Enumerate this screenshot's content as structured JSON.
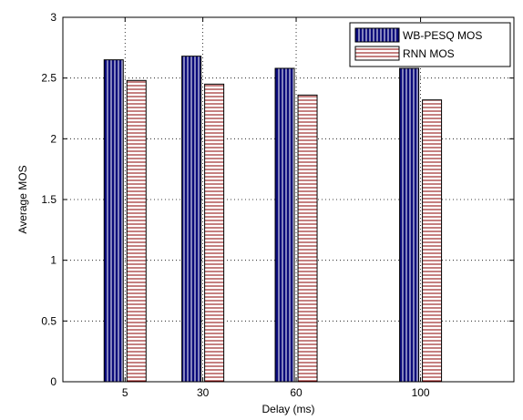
{
  "chart_data": {
    "type": "bar",
    "title": "",
    "xlabel": "Delay (ms)",
    "ylabel": "Average MOS",
    "x": [
      5,
      30,
      60,
      100
    ],
    "x_tick_labels": [
      "5",
      "30",
      "60",
      "100"
    ],
    "xlim": [
      -15,
      130
    ],
    "ylim": [
      0,
      3
    ],
    "y_ticks": [
      0,
      0.5,
      1,
      1.5,
      2,
      2.5,
      3
    ],
    "y_tick_labels": [
      "0",
      "0.5",
      "1",
      "1.5",
      "2",
      "2.5",
      "3"
    ],
    "grid": true,
    "legend_position": "top-right",
    "series": [
      {
        "name": "WB-PESQ MOS",
        "values": [
          2.65,
          2.68,
          2.58,
          2.58
        ],
        "color": "#0a0a7a",
        "pattern": "vertical-lines",
        "pattern_color": "#ffffff"
      },
      {
        "name": "RNN MOS",
        "values": [
          2.48,
          2.45,
          2.36,
          2.32
        ],
        "color": "#ffffff",
        "pattern": "horizontal-lines",
        "pattern_color": "#8b0000"
      }
    ]
  }
}
